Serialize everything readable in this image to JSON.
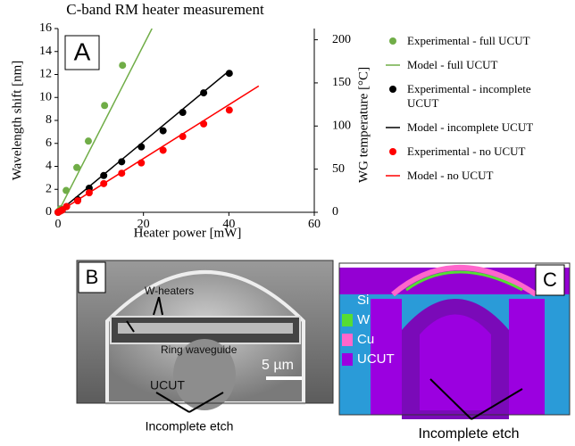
{
  "chart_data": {
    "type": "line",
    "title": "C-band RM heater measurement",
    "label": "A",
    "xlabel": "Heater power [mW]",
    "ylabel": "Wavelength shift [nm]",
    "y2label": "WG temperature [°C]",
    "xlim": [
      0,
      60
    ],
    "xticks": [
      0,
      20,
      40,
      60
    ],
    "ylim": [
      0,
      16
    ],
    "yticks": [
      0,
      2,
      4,
      6,
      8,
      10,
      12,
      14,
      16
    ],
    "y2lim": [
      0,
      213
    ],
    "y2ticks": [
      0,
      50,
      100,
      150,
      200
    ],
    "series": [
      {
        "name": "Experimental - full UCUT",
        "color": "#70ad47",
        "mode": "markers",
        "x": [
          0.2,
          0.6,
          1.9,
          4.4,
          7.1,
          10.9,
          15.1
        ],
        "values": [
          0.1,
          0.3,
          1.9,
          3.9,
          6.2,
          9.3,
          12.8
        ]
      },
      {
        "name": "Model - full UCUT",
        "color": "#70ad47",
        "mode": "line",
        "x": [
          0,
          22
        ],
        "values": [
          0,
          16
        ]
      },
      {
        "name": "Experimental - incomplete UCUT",
        "color": "#000000",
        "mode": "markers",
        "x": [
          0,
          0.5,
          1,
          2,
          4.6,
          7.3,
          10.7,
          14.9,
          19.5,
          24.6,
          29.2,
          34.1,
          40.1
        ],
        "values": [
          0,
          0.1,
          0.2,
          0.5,
          1.1,
          2.1,
          3.2,
          4.4,
          5.7,
          7.1,
          8.7,
          10.4,
          12.1
        ]
      },
      {
        "name": "Model - incomplete UCUT",
        "color": "#000000",
        "mode": "line",
        "x": [
          0,
          40
        ],
        "values": [
          0,
          12.3
        ]
      },
      {
        "name": "Experimental - no UCUT",
        "color": "#ff0000",
        "mode": "markers",
        "x": [
          0,
          0.5,
          1,
          2,
          4.6,
          7.3,
          10.7,
          14.9,
          19.5,
          24.6,
          29.2,
          34.1,
          40.1
        ],
        "values": [
          0,
          0.1,
          0.2,
          0.5,
          1.0,
          1.7,
          2.5,
          3.4,
          4.3,
          5.4,
          6.6,
          7.7,
          8.9
        ]
      },
      {
        "name": "Model - no UCUT",
        "color": "#ff0000",
        "mode": "line",
        "x": [
          0,
          47
        ],
        "values": [
          0,
          11
        ]
      }
    ]
  },
  "panel_b": {
    "label": "B",
    "heaters": "W-heaters",
    "ring": "Ring waveguide",
    "scale": "5 µm",
    "ucut": "UCUT",
    "caption": "Incomplete etch"
  },
  "panel_c": {
    "label": "C",
    "legend": [
      "Si",
      "W",
      "Cu",
      "UCUT"
    ],
    "caption": "Incomplete etch"
  }
}
